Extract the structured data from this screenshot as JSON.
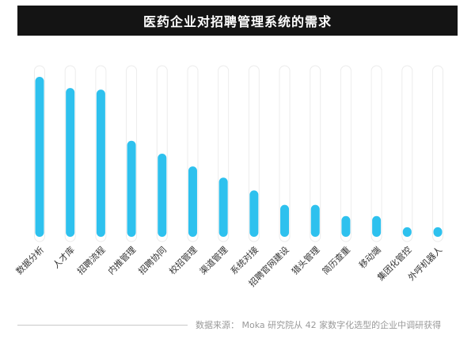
{
  "chart_data": {
    "type": "bar",
    "title": "医药企业对招聘管理系统的需求",
    "categories": [
      "数据分析",
      "人才库",
      "招聘流程",
      "内推管理",
      "招聘协同",
      "校招管理",
      "渠道管理",
      "系统对接",
      "招聘官网建设",
      "猎头管理",
      "简历查重",
      "移动端",
      "集团化管控",
      "外呼机器人"
    ],
    "values": [
      100,
      93,
      92,
      60,
      52,
      44,
      37,
      29,
      20,
      20,
      13,
      13,
      6,
      6
    ],
    "ylim": [
      0,
      100
    ],
    "grid": false,
    "colors": {
      "bar": "#2ec1ee",
      "track": "#ececec"
    }
  },
  "footer": {
    "source": "数据来源：  Moka 研究院从 42 家数字化选型的企业中调研获得"
  }
}
